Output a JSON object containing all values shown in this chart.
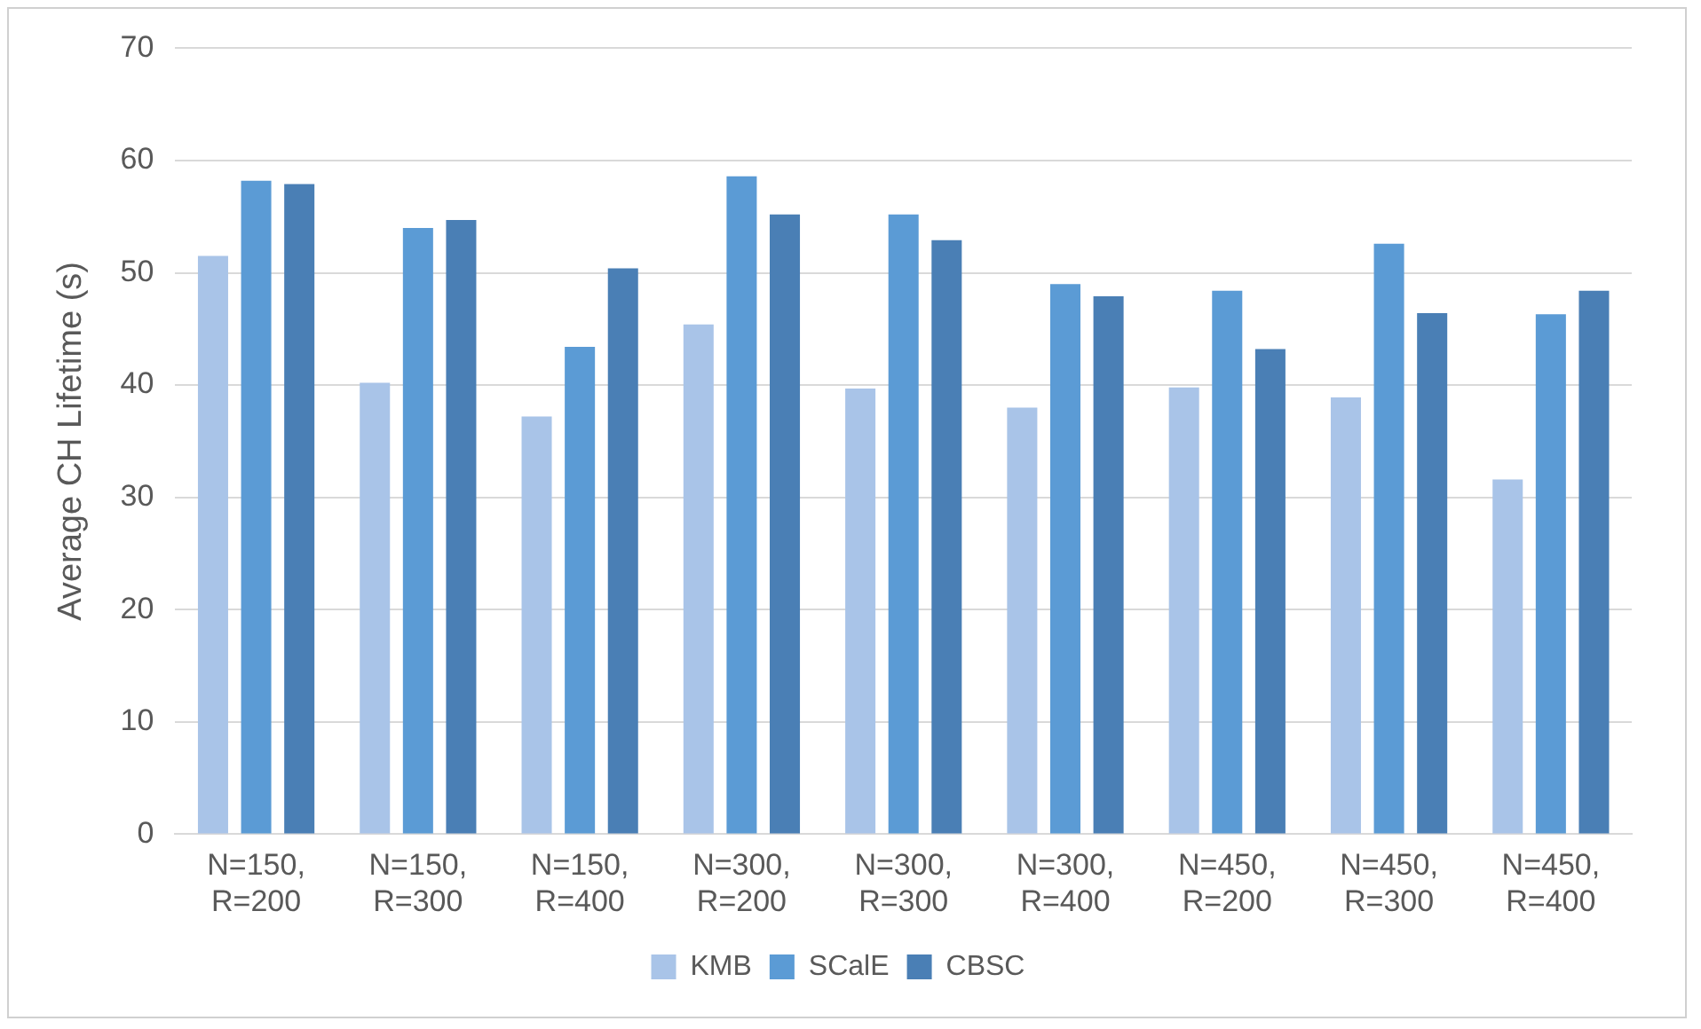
{
  "chart_data": {
    "type": "bar",
    "ylabel": "Average CH Lifetime (s)",
    "categories": [
      "N=150, R=200",
      "N=150, R=300",
      "N=150, R=400",
      "N=300, R=200",
      "N=300, R=300",
      "N=300, R=400",
      "N=450, R=200",
      "N=450, R=300",
      "N=450, R=400"
    ],
    "series": [
      {
        "name": "KMB",
        "color": "#a9c4e8",
        "values": [
          51.5,
          40.2,
          37.2,
          45.4,
          39.7,
          38.0,
          39.8,
          38.9,
          31.6
        ]
      },
      {
        "name": "SCalE",
        "color": "#5b9bd5",
        "values": [
          58.2,
          54.0,
          43.4,
          58.6,
          55.2,
          49.0,
          48.4,
          52.6,
          46.3
        ]
      },
      {
        "name": "CBSC",
        "color": "#4a7fb5",
        "values": [
          57.9,
          54.7,
          50.4,
          55.2,
          52.9,
          47.9,
          43.2,
          46.4,
          48.4
        ]
      }
    ],
    "ylim": [
      0,
      70
    ],
    "yticks": [
      0,
      10,
      20,
      30,
      40,
      50,
      60,
      70
    ],
    "grid": "y",
    "legend": "bottom"
  }
}
